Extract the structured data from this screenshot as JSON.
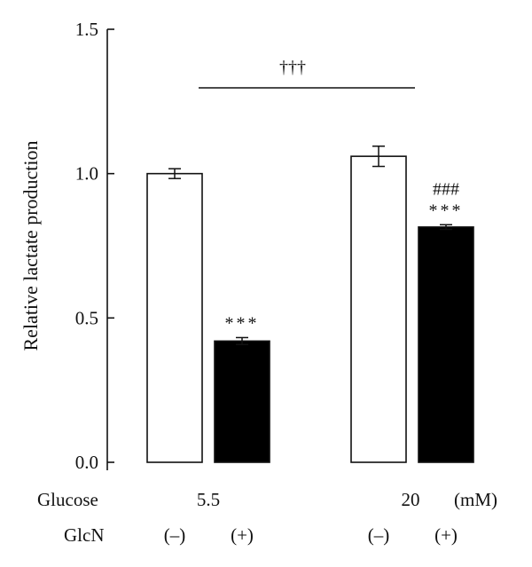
{
  "chart_data": {
    "type": "bar",
    "ylabel": "Relative lactate production",
    "ylim": [
      0,
      1.5
    ],
    "yticks": [
      {
        "value": 0.0,
        "label": "0.0"
      },
      {
        "value": 0.5,
        "label": "0.5"
      },
      {
        "value": 1.0,
        "label": "1.0"
      },
      {
        "value": 1.5,
        "label": "1.5"
      }
    ],
    "bars": [
      {
        "glucose": "5.5",
        "glcn": "(–)",
        "value": 1.0,
        "error": 0.017,
        "fill": "#ffffff",
        "annotations": []
      },
      {
        "glucose": "5.5",
        "glcn": "(+)",
        "value": 0.42,
        "error": 0.012,
        "fill": "#000000",
        "annotations": [
          "***"
        ]
      },
      {
        "glucose": "20",
        "glcn": "(–)",
        "value": 1.06,
        "error": 0.035,
        "fill": "#ffffff",
        "annotations": []
      },
      {
        "glucose": "20",
        "glcn": "(+)",
        "value": 0.815,
        "error": 0.008,
        "fill": "#000000",
        "annotations": [
          "###",
          "***"
        ]
      }
    ],
    "comparison": {
      "label": "†††",
      "from_group": 0,
      "to_group": 1
    },
    "row_labels": {
      "glucose": "Glucose",
      "glcn": "GlcN",
      "glucose_values": [
        "5.5",
        "20"
      ],
      "unit": "(mM)"
    }
  }
}
